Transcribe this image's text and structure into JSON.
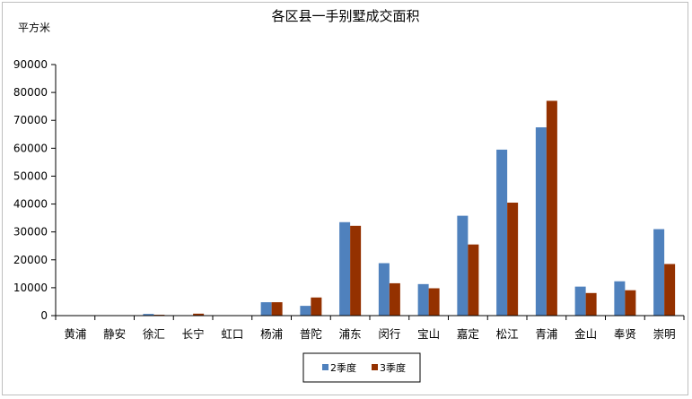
{
  "chart_data": {
    "type": "bar",
    "title": "各区县一手别墅成交面积",
    "ylabel": "平方米",
    "xlabel": "",
    "ylim": [
      0,
      90000
    ],
    "yticks": [
      0,
      10000,
      20000,
      30000,
      40000,
      50000,
      60000,
      70000,
      80000,
      90000
    ],
    "grid": false,
    "legend_position": "bottom",
    "categories": [
      "黄浦",
      "静安",
      "徐汇",
      "长宁",
      "虹口",
      "杨浦",
      "普陀",
      "浦东",
      "闵行",
      "宝山",
      "嘉定",
      "松江",
      "青浦",
      "金山",
      "奉贤",
      "崇明"
    ],
    "series": [
      {
        "name": "2季度",
        "color": "#4f81bd",
        "values": [
          0,
          0,
          600,
          0,
          0,
          4800,
          3500,
          33500,
          18800,
          11300,
          35800,
          59500,
          67500,
          10400,
          12300,
          31000
        ]
      },
      {
        "name": "3季度",
        "color": "#943100",
        "values": [
          0,
          0,
          300,
          700,
          0,
          4800,
          6500,
          32200,
          11600,
          9800,
          25500,
          40500,
          77000,
          8100,
          9100,
          18500
        ]
      }
    ]
  }
}
